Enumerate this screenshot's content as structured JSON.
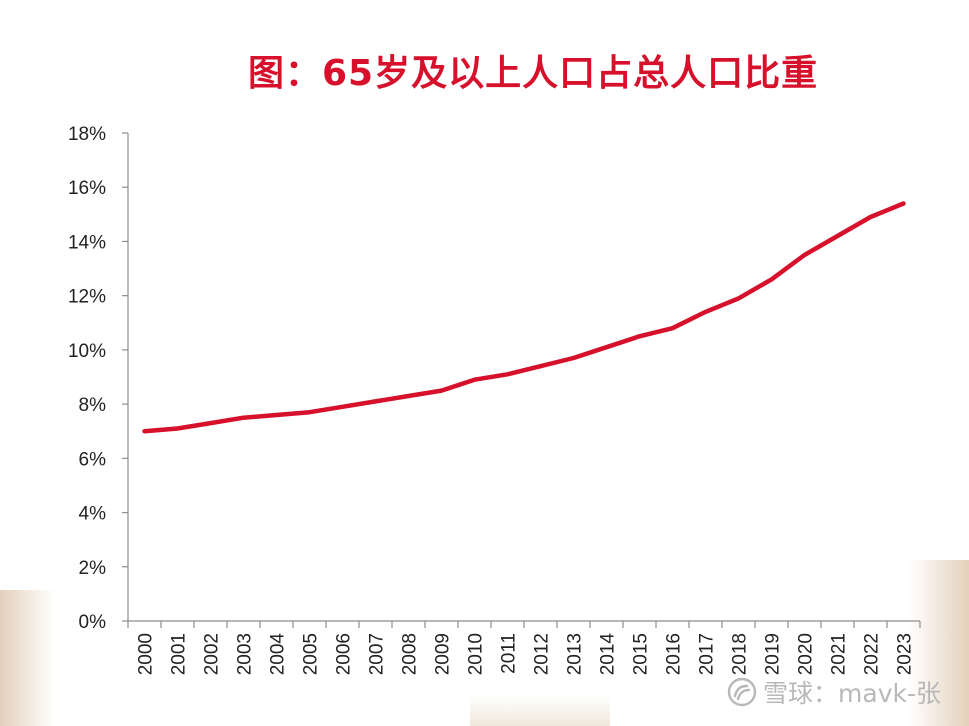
{
  "chart_data": {
    "type": "line",
    "title": "图：65岁及以上人口占总人口比重",
    "x": [
      "2000",
      "2001",
      "2002",
      "2003",
      "2004",
      "2005",
      "2006",
      "2007",
      "2008",
      "2009",
      "2010",
      "2011",
      "2012",
      "2013",
      "2014",
      "2015",
      "2016",
      "2017",
      "2018",
      "2019",
      "2020",
      "2021",
      "2022",
      "2023"
    ],
    "series": [
      {
        "values": [
          7.0,
          7.1,
          7.3,
          7.5,
          7.6,
          7.7,
          7.9,
          8.1,
          8.3,
          8.5,
          8.9,
          9.1,
          9.4,
          9.7,
          10.1,
          10.5,
          10.8,
          11.4,
          11.9,
          12.6,
          13.5,
          14.2,
          14.9,
          15.4
        ],
        "color": "#d7102b"
      }
    ],
    "ylim": [
      0,
      18
    ],
    "yticks": [
      "0%",
      "2%",
      "4%",
      "6%",
      "8%",
      "10%",
      "12%",
      "14%",
      "16%",
      "18%"
    ],
    "grid": false,
    "legend": "none"
  },
  "watermark": {
    "logo_icon": "snowball-logo-icon",
    "text": "雪球：mavk-张"
  }
}
